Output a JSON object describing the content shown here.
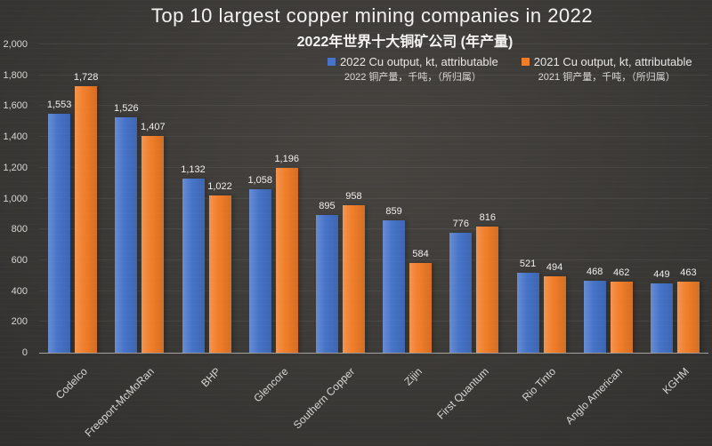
{
  "chart_data": {
    "type": "bar",
    "title": "Top 10 largest copper mining companies in 2022",
    "subtitle": "2022年世界十大铜矿公司 (年产量)",
    "categories": [
      "Codelco",
      "Freeport-McMoRan",
      "BHP",
      "Glencore",
      "Southern Copper",
      "Zijin",
      "First Quantum",
      "Rio Tinto",
      "Anglo American",
      "KGHM"
    ],
    "series": [
      {
        "name": "2022 Cu output, kt, attributable",
        "name_zh": "2022 铜产量，千吨，（所归属）",
        "color": "#4673C8",
        "values": [
          1553,
          1526,
          1132,
          1058,
          895,
          859,
          776,
          521,
          468,
          449
        ]
      },
      {
        "name": "2021 Cu output, kt, attributable",
        "name_zh": "2021 铜产量，千吨，（所归属）",
        "color": "#F07D28",
        "values": [
          1728,
          1407,
          1022,
          1196,
          958,
          584,
          816,
          494,
          462,
          463
        ]
      }
    ],
    "xlabel": "",
    "ylabel": "",
    "ylim": [
      0,
      2000
    ],
    "ytick_step": 200,
    "ytick_labels": [
      "0",
      "200",
      "400",
      "600",
      "800",
      "1,000",
      "1,200",
      "1,400",
      "1,600",
      "1,800",
      "2,000"
    ],
    "grid": true,
    "legend_position": "top-right",
    "value_labels": true,
    "background_color": "#3b3936",
    "text_color": "#f4f3f1",
    "axis_text_color": "#d8d6d3"
  }
}
